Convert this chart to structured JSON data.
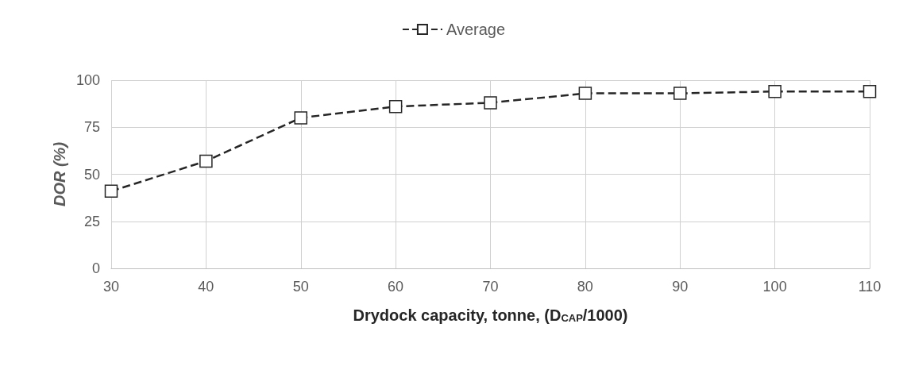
{
  "chart_data": {
    "type": "line",
    "xlabel": "Drydock capacity, tonne, (D$_{CAP}$/1000)",
    "ylabel": "DOR (%)",
    "x": [
      30,
      40,
      50,
      60,
      70,
      80,
      90,
      100,
      110
    ],
    "series": [
      {
        "name": "Average",
        "color": "#262626",
        "values": [
          41,
          57,
          80,
          86,
          88,
          93,
          93,
          94,
          94
        ]
      }
    ],
    "xlim": [
      30,
      110
    ],
    "xticks": [
      30,
      40,
      50,
      60,
      70,
      80,
      90,
      100,
      110
    ],
    "ylim": [
      0,
      100
    ],
    "yticks": [
      0,
      25,
      50,
      75,
      100
    ],
    "grid": true,
    "legend": "top",
    "marker": "square",
    "line_style": "dashed"
  }
}
